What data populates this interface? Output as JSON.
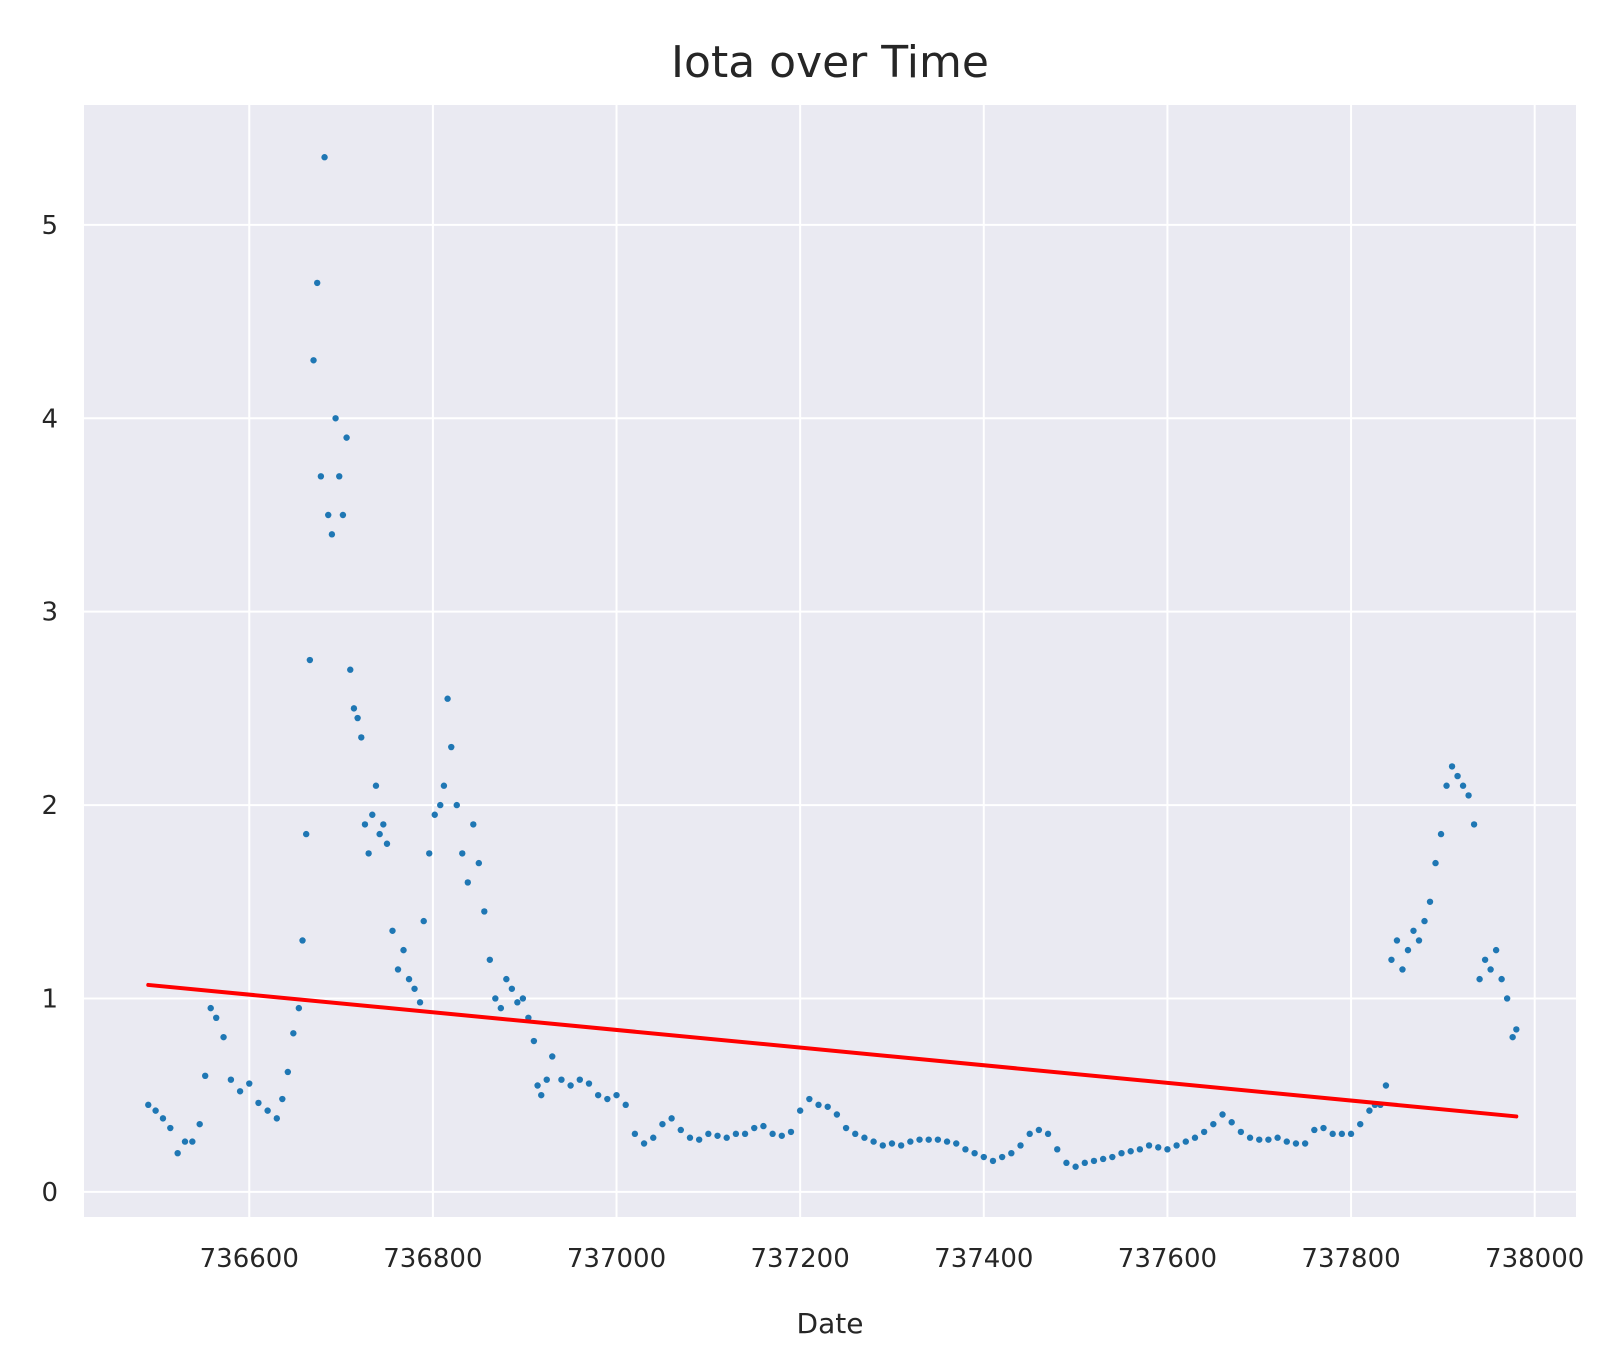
{
  "chart_data": {
    "type": "scatter",
    "title": "Iota over Time",
    "xlabel": "Date",
    "ylabel": "",
    "xlim": [
      736420,
      738045
    ],
    "ylim": [
      -0.13,
      5.62
    ],
    "grid": true,
    "x_ticks": [
      736600,
      736800,
      737000,
      737200,
      737400,
      737600,
      737800,
      738000
    ],
    "y_ticks": [
      0,
      1,
      2,
      3,
      4,
      5
    ],
    "colors": {
      "points": "#1f77b4",
      "trend": "#ff0000",
      "background": "#eaeaf2",
      "grid": "#ffffff"
    },
    "series": [
      {
        "type": "scatter",
        "x": [
          736490,
          736498,
          736506,
          736514,
          736522,
          736530,
          736538,
          736546,
          736552,
          736558,
          736564,
          736572,
          736580,
          736590,
          736600,
          736610,
          736620,
          736630,
          736636,
          736642,
          736648,
          736654,
          736658,
          736662,
          736666,
          736670,
          736674,
          736678,
          736682,
          736686,
          736690,
          736694,
          736698,
          736702,
          736706,
          736710,
          736714,
          736718,
          736722,
          736726,
          736730,
          736734,
          736738,
          736742,
          736746,
          736750,
          736756,
          736762,
          736768,
          736774,
          736780,
          736786,
          736790,
          736796,
          736802,
          736808,
          736812,
          736816,
          736820,
          736826,
          736832,
          736838,
          736844,
          736850,
          736856,
          736862,
          736868,
          736874,
          736880,
          736886,
          736892,
          736898,
          736904,
          736910,
          736914,
          736918,
          736924,
          736930,
          736940,
          736950,
          736960,
          736970,
          736980,
          736990,
          737000,
          737010,
          737020,
          737030,
          737040,
          737050,
          737060,
          737070,
          737080,
          737090,
          737100,
          737110,
          737120,
          737130,
          737140,
          737150,
          737160,
          737170,
          737180,
          737190,
          737200,
          737210,
          737220,
          737230,
          737240,
          737250,
          737260,
          737270,
          737280,
          737290,
          737300,
          737310,
          737320,
          737330,
          737340,
          737350,
          737360,
          737370,
          737380,
          737390,
          737400,
          737410,
          737420,
          737430,
          737440,
          737450,
          737460,
          737470,
          737480,
          737490,
          737500,
          737510,
          737520,
          737530,
          737540,
          737550,
          737560,
          737570,
          737580,
          737590,
          737600,
          737610,
          737620,
          737630,
          737640,
          737650,
          737660,
          737670,
          737680,
          737690,
          737700,
          737710,
          737720,
          737730,
          737740,
          737750,
          737760,
          737770,
          737780,
          737790,
          737800,
          737810,
          737820,
          737826,
          737832,
          737838,
          737844,
          737850,
          737856,
          737862,
          737868,
          737874,
          737880,
          737886,
          737892,
          737898,
          737904,
          737910,
          737916,
          737922,
          737928,
          737934,
          737940,
          737946,
          737952,
          737958,
          737964,
          737970,
          737976,
          737980
        ],
        "y": [
          0.45,
          0.42,
          0.38,
          0.33,
          0.2,
          0.26,
          0.26,
          0.35,
          0.6,
          0.95,
          0.9,
          0.8,
          0.58,
          0.52,
          0.56,
          0.46,
          0.42,
          0.38,
          0.48,
          0.62,
          0.82,
          0.95,
          1.3,
          1.85,
          2.75,
          4.3,
          4.7,
          3.7,
          5.35,
          3.5,
          3.4,
          4.0,
          3.7,
          3.5,
          3.9,
          2.7,
          2.5,
          2.45,
          2.35,
          1.9,
          1.75,
          1.95,
          2.1,
          1.85,
          1.9,
          1.8,
          1.35,
          1.15,
          1.25,
          1.1,
          1.05,
          0.98,
          1.4,
          1.75,
          1.95,
          2.0,
          2.1,
          2.55,
          2.3,
          2.0,
          1.75,
          1.6,
          1.9,
          1.7,
          1.45,
          1.2,
          1.0,
          0.95,
          1.1,
          1.05,
          0.98,
          1.0,
          0.9,
          0.78,
          0.55,
          0.5,
          0.58,
          0.7,
          0.58,
          0.55,
          0.58,
          0.56,
          0.5,
          0.48,
          0.5,
          0.45,
          0.3,
          0.25,
          0.28,
          0.35,
          0.38,
          0.32,
          0.28,
          0.27,
          0.3,
          0.29,
          0.28,
          0.3,
          0.3,
          0.33,
          0.34,
          0.3,
          0.29,
          0.31,
          0.42,
          0.48,
          0.45,
          0.44,
          0.4,
          0.33,
          0.3,
          0.28,
          0.26,
          0.24,
          0.25,
          0.24,
          0.26,
          0.27,
          0.27,
          0.27,
          0.26,
          0.25,
          0.22,
          0.2,
          0.18,
          0.16,
          0.18,
          0.2,
          0.24,
          0.3,
          0.32,
          0.3,
          0.22,
          0.15,
          0.13,
          0.15,
          0.16,
          0.17,
          0.18,
          0.2,
          0.21,
          0.22,
          0.24,
          0.23,
          0.22,
          0.24,
          0.26,
          0.28,
          0.31,
          0.35,
          0.4,
          0.36,
          0.31,
          0.28,
          0.27,
          0.27,
          0.28,
          0.26,
          0.25,
          0.25,
          0.32,
          0.33,
          0.3,
          0.3,
          0.3,
          0.35,
          0.42,
          0.45,
          0.45,
          0.55,
          1.2,
          1.3,
          1.15,
          1.25,
          1.35,
          1.3,
          1.4,
          1.5,
          1.7,
          1.85,
          2.1,
          2.2,
          2.15,
          2.1,
          2.05,
          1.9,
          1.1,
          1.2,
          1.15,
          1.25,
          1.1,
          1.0,
          0.8,
          0.84
        ]
      },
      {
        "type": "line",
        "x": [
          736490,
          737980
        ],
        "y": [
          1.07,
          0.39
        ]
      }
    ]
  }
}
